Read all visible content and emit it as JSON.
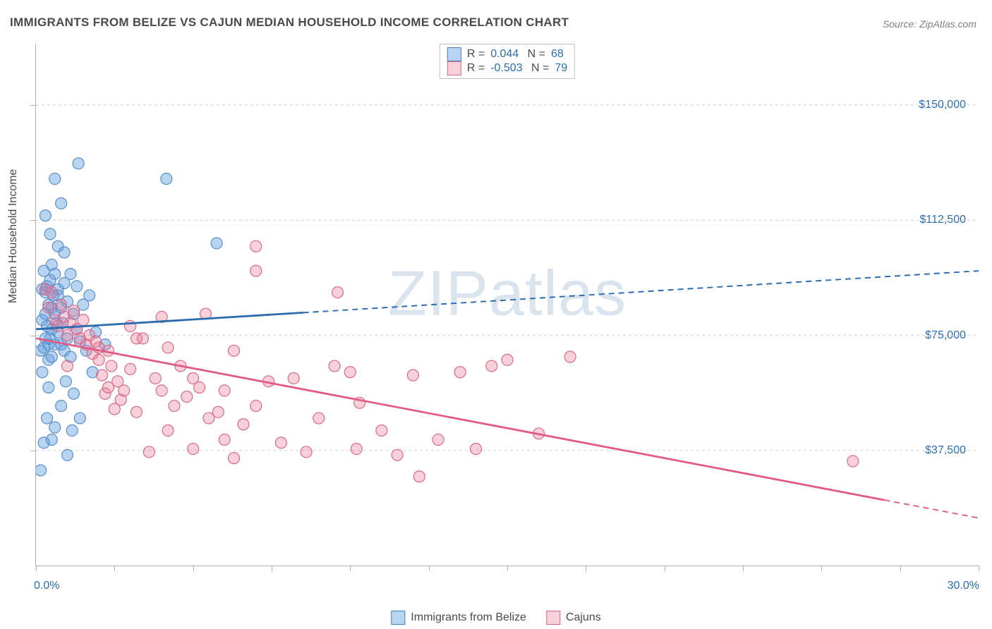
{
  "title": "IMMIGRANTS FROM BELIZE VS CAJUN MEDIAN HOUSEHOLD INCOME CORRELATION CHART",
  "source_label": "Source: ZipAtlas.com",
  "watermark": "ZIPatlas",
  "y_axis_title": "Median Household Income",
  "chart": {
    "type": "scatter",
    "background_color": "#ffffff",
    "grid_color": "#d0d0d0",
    "axis_color": "#b0b0b0",
    "tick_label_color": "#2b6cb0",
    "xlim": [
      0,
      30
    ],
    "ylim": [
      0,
      170000
    ],
    "x_ticks_pct": [
      0,
      2.5,
      5,
      7.5,
      10,
      12.5,
      15,
      17.5,
      20,
      22.5,
      25,
      27.5,
      30
    ],
    "x_tick_labels": {
      "start": "0.0%",
      "end": "30.0%"
    },
    "y_ticks": [
      37500,
      75000,
      112500,
      150000
    ],
    "y_tick_labels": [
      "$37,500",
      "$75,000",
      "$112,500",
      "$150,000"
    ],
    "series": [
      {
        "name": "Immigrants from Belize",
        "color_fill": "rgba(100,160,225,0.45)",
        "color_stroke": "#5a8fc8",
        "marker_radius": 8,
        "R": "0.044",
        "N": "68",
        "trend": {
          "x1": 0,
          "y1": 77000,
          "x2": 30,
          "y2": 96000,
          "solid_until_x": 8.5,
          "color": "#2b6cb0",
          "width": 2.8
        },
        "points": [
          [
            0.15,
            70000
          ],
          [
            0.2,
            80000
          ],
          [
            0.2,
            90000
          ],
          [
            0.25,
            71000
          ],
          [
            0.2,
            63000
          ],
          [
            0.25,
            96000
          ],
          [
            0.3,
            89000
          ],
          [
            0.3,
            82000
          ],
          [
            0.3,
            74000
          ],
          [
            0.35,
            91000
          ],
          [
            0.35,
            78000
          ],
          [
            0.4,
            85000
          ],
          [
            0.4,
            72000
          ],
          [
            0.4,
            67000
          ],
          [
            0.45,
            93000
          ],
          [
            0.45,
            74000
          ],
          [
            0.5,
            98000
          ],
          [
            0.5,
            84000
          ],
          [
            0.5,
            77000
          ],
          [
            0.5,
            68000
          ],
          [
            0.55,
            88000
          ],
          [
            0.6,
            82000
          ],
          [
            0.6,
            72000
          ],
          [
            0.6,
            95000
          ],
          [
            0.65,
            79000
          ],
          [
            0.7,
            90000
          ],
          [
            0.7,
            76000
          ],
          [
            0.7,
            88000
          ],
          [
            0.8,
            84000
          ],
          [
            0.8,
            72000
          ],
          [
            0.85,
            79000
          ],
          [
            0.9,
            92000
          ],
          [
            0.9,
            70000
          ],
          [
            1.0,
            86000
          ],
          [
            1.0,
            74000
          ],
          [
            1.1,
            95000
          ],
          [
            1.1,
            68000
          ],
          [
            1.2,
            82000
          ],
          [
            1.3,
            77000
          ],
          [
            1.3,
            91000
          ],
          [
            1.4,
            73000
          ],
          [
            1.5,
            85000
          ],
          [
            1.6,
            70000
          ],
          [
            1.7,
            88000
          ],
          [
            1.8,
            63000
          ],
          [
            0.3,
            114000
          ],
          [
            0.45,
            108000
          ],
          [
            0.7,
            104000
          ],
          [
            1.0,
            36000
          ],
          [
            0.6,
            45000
          ],
          [
            0.8,
            52000
          ],
          [
            0.4,
            58000
          ],
          [
            1.2,
            56000
          ],
          [
            0.5,
            41000
          ],
          [
            0.35,
            48000
          ],
          [
            0.95,
            60000
          ],
          [
            0.15,
            31000
          ],
          [
            0.25,
            40000
          ],
          [
            1.15,
            44000
          ],
          [
            1.4,
            48000
          ],
          [
            0.6,
            126000
          ],
          [
            0.9,
            102000
          ],
          [
            1.35,
            131000
          ],
          [
            4.15,
            126000
          ],
          [
            1.9,
            76000
          ],
          [
            5.75,
            105000
          ],
          [
            2.2,
            72000
          ],
          [
            0.8,
            118000
          ]
        ]
      },
      {
        "name": "Cajuns",
        "color_fill": "rgba(235,120,150,0.35)",
        "color_stroke": "#d86a8a",
        "marker_radius": 8,
        "R": "-0.503",
        "N": "79",
        "trend": {
          "x1": 0,
          "y1": 74000,
          "x2": 30,
          "y2": 15500,
          "solid_until_x": 27,
          "color": "#e35a82",
          "width": 2.8
        },
        "points": [
          [
            0.3,
            90000
          ],
          [
            0.4,
            84000
          ],
          [
            0.5,
            89000
          ],
          [
            0.6,
            80000
          ],
          [
            0.7,
            78000
          ],
          [
            0.8,
            85000
          ],
          [
            0.9,
            81000
          ],
          [
            1.0,
            75000
          ],
          [
            1.1,
            79000
          ],
          [
            1.2,
            83000
          ],
          [
            1.3,
            77000
          ],
          [
            1.4,
            74000
          ],
          [
            1.5,
            80000
          ],
          [
            1.6,
            72000
          ],
          [
            1.7,
            75000
          ],
          [
            1.8,
            69000
          ],
          [
            1.9,
            73000
          ],
          [
            2.0,
            67000
          ],
          [
            2.1,
            62000
          ],
          [
            2.2,
            56000
          ],
          [
            2.3,
            70000
          ],
          [
            2.3,
            58000
          ],
          [
            2.4,
            65000
          ],
          [
            2.5,
            51000
          ],
          [
            2.6,
            60000
          ],
          [
            2.7,
            54000
          ],
          [
            2.8,
            57000
          ],
          [
            3.0,
            64000
          ],
          [
            3.0,
            78000
          ],
          [
            3.2,
            50000
          ],
          [
            3.4,
            74000
          ],
          [
            3.6,
            37000
          ],
          [
            3.8,
            61000
          ],
          [
            4.0,
            57000
          ],
          [
            4.2,
            71000
          ],
          [
            4.2,
            44000
          ],
          [
            4.4,
            52000
          ],
          [
            4.6,
            65000
          ],
          [
            4.8,
            55000
          ],
          [
            5.0,
            38000
          ],
          [
            5.0,
            61000
          ],
          [
            5.2,
            58000
          ],
          [
            5.5,
            48000
          ],
          [
            5.8,
            50000
          ],
          [
            6.0,
            41000
          ],
          [
            6.0,
            57000
          ],
          [
            6.3,
            35000
          ],
          [
            6.3,
            70000
          ],
          [
            6.6,
            46000
          ],
          [
            7.0,
            96000
          ],
          [
            7.0,
            52000
          ],
          [
            7.4,
            60000
          ],
          [
            7.8,
            40000
          ],
          [
            8.2,
            61000
          ],
          [
            8.6,
            37000
          ],
          [
            9.0,
            48000
          ],
          [
            9.5,
            65000
          ],
          [
            9.6,
            89000
          ],
          [
            10.0,
            63000
          ],
          [
            10.2,
            38000
          ],
          [
            10.3,
            53000
          ],
          [
            11.0,
            44000
          ],
          [
            11.5,
            36000
          ],
          [
            12.0,
            62000
          ],
          [
            12.2,
            29000
          ],
          [
            12.8,
            41000
          ],
          [
            13.5,
            63000
          ],
          [
            14.0,
            38000
          ],
          [
            14.5,
            65000
          ],
          [
            15.0,
            67000
          ],
          [
            16.0,
            43000
          ],
          [
            17.0,
            68000
          ],
          [
            3.2,
            74000
          ],
          [
            4.0,
            81000
          ],
          [
            5.4,
            82000
          ],
          [
            2.0,
            71000
          ],
          [
            1.0,
            65000
          ],
          [
            26.0,
            34000
          ],
          [
            7.0,
            104000
          ]
        ]
      }
    ],
    "legend_bottom": [
      {
        "swatch": "blue",
        "label": "Immigrants from Belize"
      },
      {
        "swatch": "pink",
        "label": "Cajuns"
      }
    ]
  }
}
